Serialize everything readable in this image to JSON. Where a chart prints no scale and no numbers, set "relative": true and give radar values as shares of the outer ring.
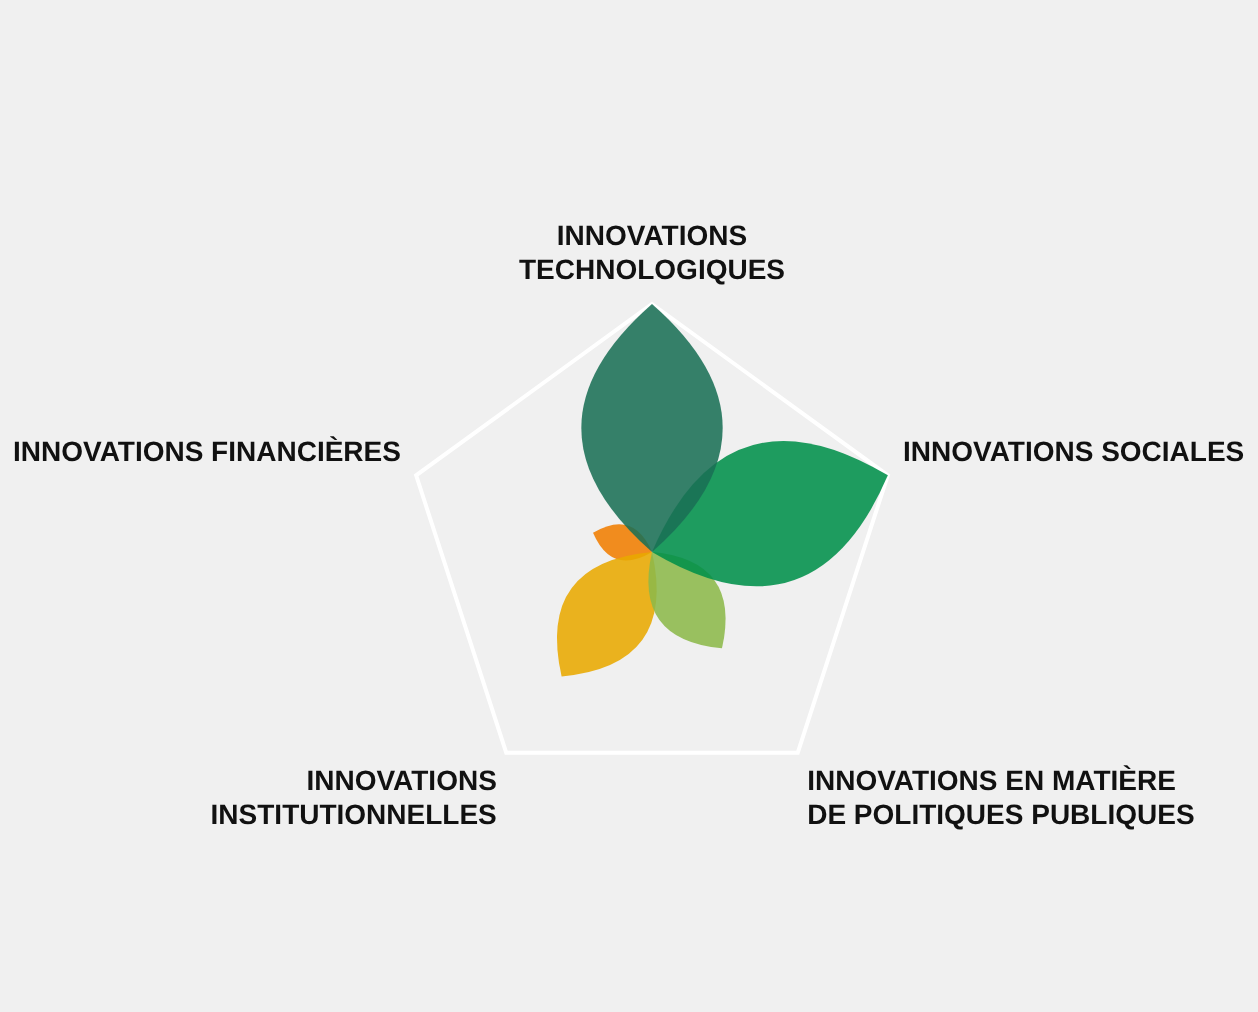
{
  "chart_data": {
    "type": "radar",
    "relative": true,
    "categories": [
      "INNOVATIONS TECHNOLOGIQUES",
      "INNOVATIONS SOCIALES",
      "INNOVATIONS EN MATIÈRE DE POLITIQUES PUBLIQUES",
      "INNOVATIONS INSTITUTIONNELLES",
      "INNOVATIONS FINANCIÈRES"
    ],
    "series": [
      {
        "color": "#1a7055",
        "values": [
          1.0,
          0,
          0,
          0,
          0
        ]
      },
      {
        "color": "#00904a",
        "values": [
          0,
          1.0,
          0,
          0,
          0
        ]
      },
      {
        "color": "#8cb84a",
        "values": [
          0,
          0,
          0.48,
          0,
          0
        ]
      },
      {
        "color": "#e8a800",
        "values": [
          0,
          0,
          0,
          0.62,
          0
        ]
      },
      {
        "color": "#f07d00",
        "values": [
          0,
          0,
          0,
          0,
          0.25
        ]
      }
    ],
    "legend": false
  }
}
